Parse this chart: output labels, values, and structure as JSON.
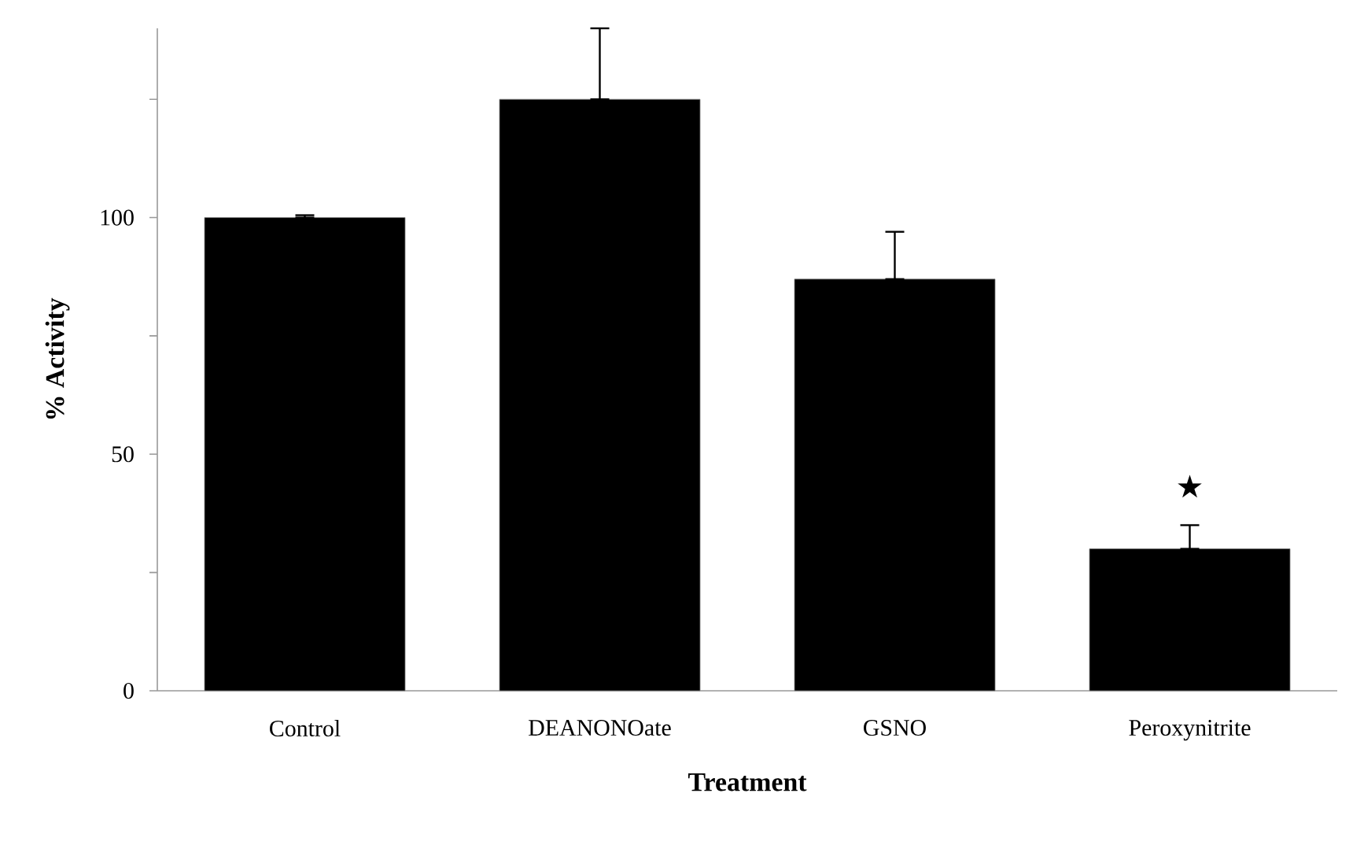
{
  "chart_data": {
    "type": "bar",
    "xlabel": "Treatment",
    "ylabel": "% Activity",
    "categories": [
      "Control",
      "DEANONOate",
      "GSNO",
      "Peroxynitrite"
    ],
    "values": [
      100,
      125,
      87,
      30
    ],
    "errors": [
      [
        100,
        100.5
      ],
      [
        125,
        140
      ],
      [
        87,
        97
      ],
      [
        30,
        35
      ]
    ],
    "color": "#000000",
    "ylim": [
      0,
      140
    ],
    "yticks": [
      0,
      {
        "value": 25,
        "label": null
      },
      50,
      {
        "value": 75,
        "label": null
      },
      100,
      {
        "value": 125,
        "label": null
      }
    ],
    "annotations": [
      "★"
    ]
  }
}
